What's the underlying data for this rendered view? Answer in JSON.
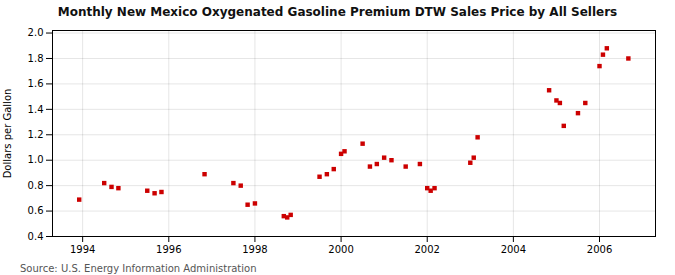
{
  "chart_data": {
    "type": "scatter",
    "title": "Monthly New Mexico Oxygenated Gasoline Premium DTW Sales Price by All Sellers",
    "ylabel": "Dollars per Gallon",
    "source": "Source: U.S. Energy Information Administration",
    "color": "#CC0000",
    "marker": "square",
    "grid": true,
    "xlim": [
      1993.3,
      2007.3
    ],
    "ylim": [
      0.4,
      2.02
    ],
    "xticks": [
      1994,
      1996,
      1998,
      2000,
      2002,
      2004,
      2006
    ],
    "yticks": [
      0.4,
      0.6,
      0.8,
      {
        "value": 1.0,
        "label": "1.0"
      },
      1.2,
      1.4,
      1.6,
      1.8,
      {
        "value": 2.0,
        "label": "2.0"
      }
    ],
    "x": [
      1993.92,
      1994.5,
      1994.67,
      1994.83,
      1995.5,
      1995.67,
      1995.83,
      1996.83,
      1997.5,
      1997.67,
      1997.83,
      1998.0,
      1998.67,
      1998.75,
      1998.83,
      1999.5,
      1999.67,
      1999.83,
      2000.0,
      2000.08,
      2000.5,
      2000.67,
      2000.83,
      2001.0,
      2001.17,
      2001.5,
      2001.83,
      2002.0,
      2002.08,
      2002.17,
      2003.0,
      2003.08,
      2003.17,
      2004.83,
      2005.0,
      2005.08,
      2005.17,
      2005.5,
      2005.67,
      2006.0,
      2006.08,
      2006.17,
      2006.67
    ],
    "values": [
      0.69,
      0.82,
      0.79,
      0.78,
      0.76,
      0.74,
      0.75,
      0.89,
      0.82,
      0.8,
      0.65,
      0.66,
      0.56,
      0.55,
      0.57,
      0.87,
      0.89,
      0.93,
      1.05,
      1.07,
      1.13,
      0.95,
      0.97,
      1.02,
      1.0,
      0.95,
      0.97,
      0.78,
      0.76,
      0.78,
      0.98,
      1.02,
      1.18,
      1.55,
      1.47,
      1.45,
      1.27,
      1.37,
      1.45,
      1.74,
      1.83,
      1.88,
      1.8
    ]
  }
}
